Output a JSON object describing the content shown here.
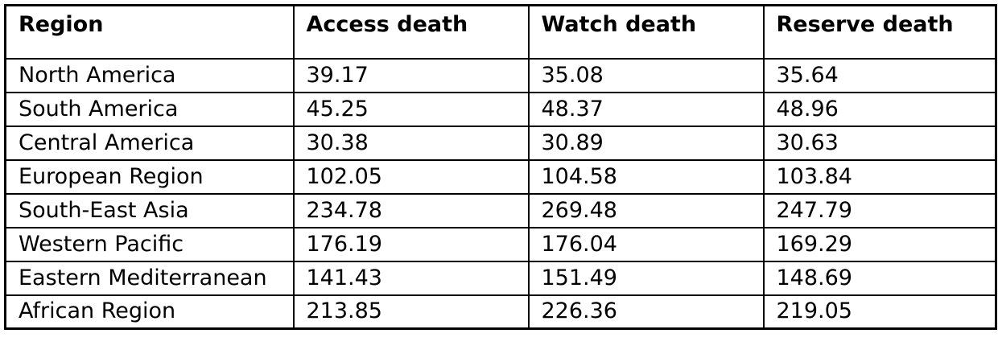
{
  "chart_data": {
    "type": "table",
    "columns": [
      "Region",
      "Access death",
      "Watch death",
      "Reserve death"
    ],
    "categories": [
      "North America",
      "South America",
      "Central America",
      "European Region",
      "South-East Asia",
      "Western Pacific",
      "Eastern Mediterranean",
      "African Region"
    ],
    "series": [
      {
        "name": "Access death",
        "values": [
          39.17,
          45.25,
          30.38,
          102.05,
          234.78,
          176.19,
          141.43,
          213.85
        ]
      },
      {
        "name": "Watch death",
        "values": [
          35.08,
          48.37,
          30.89,
          104.58,
          269.48,
          176.04,
          151.49,
          226.36
        ]
      },
      {
        "name": "Reserve death",
        "values": [
          35.64,
          48.96,
          30.63,
          103.84,
          247.79,
          169.29,
          148.69,
          219.05
        ]
      }
    ],
    "colors": {
      "text": "#000000",
      "border": "#000000",
      "background": "#ffffff"
    }
  }
}
